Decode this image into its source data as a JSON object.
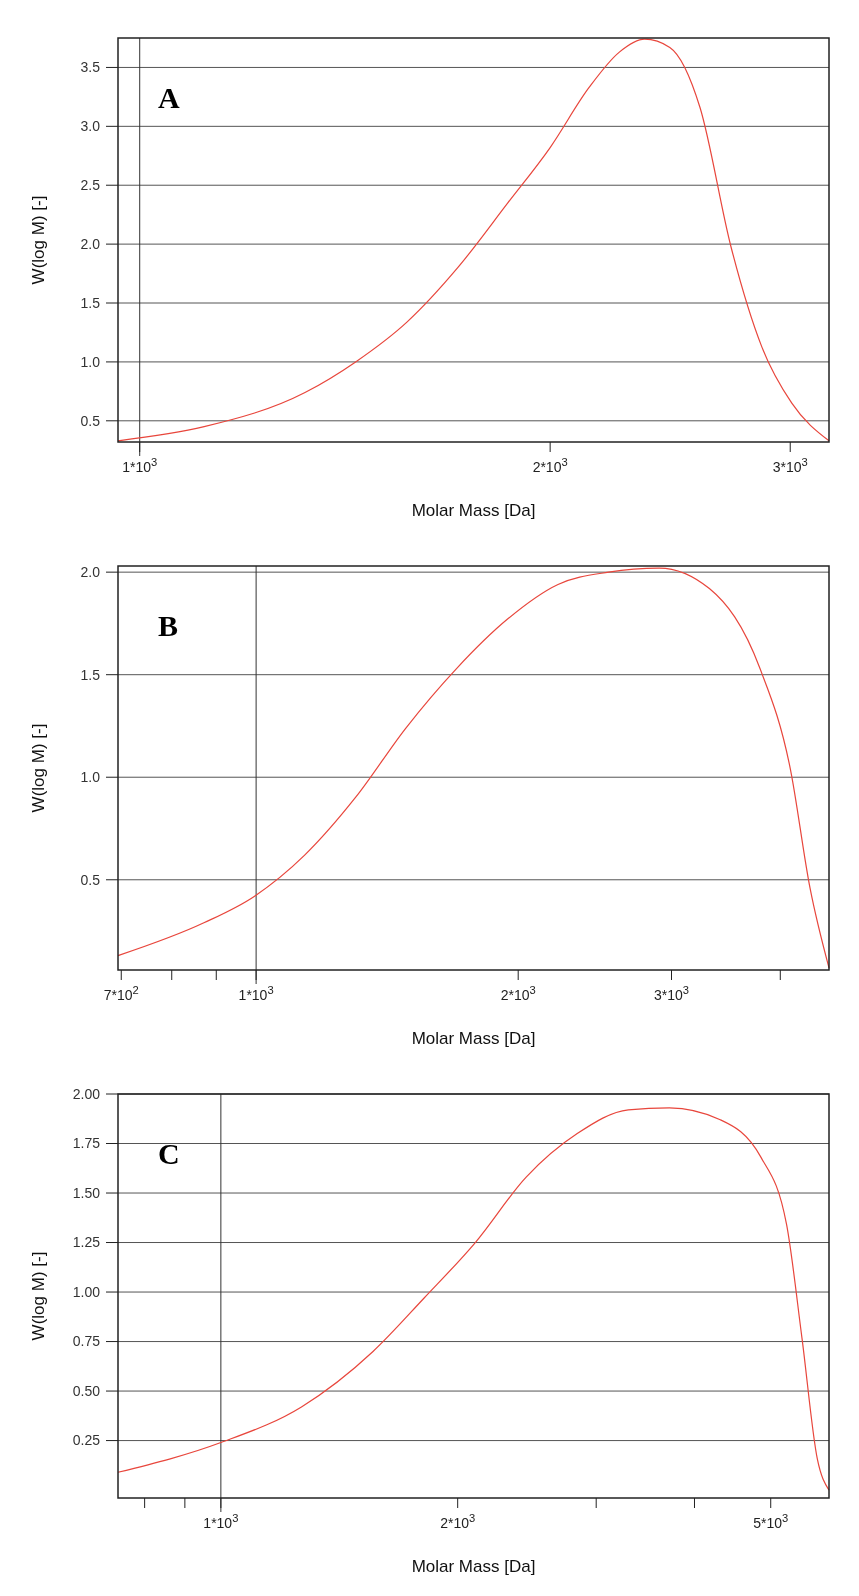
{
  "chart_data": [
    {
      "type": "line",
      "annotations": [
        "A"
      ],
      "xlabel": "Molar Mass [Da]",
      "ylabel": "W(log M) [-]",
      "log": "x",
      "grid": "y",
      "xlim": [
        964,
        3203
      ],
      "ylim": [
        0.32,
        3.75
      ],
      "xticks": [
        {
          "value": 1000,
          "label": "1*10$^{3}$"
        },
        {
          "value": 2000,
          "label": "2*10$^{3}$"
        },
        {
          "value": 3000,
          "label": "3*10$^{3}$"
        }
      ],
      "yticks": [
        {
          "value": 0.5,
          "label": "0.5"
        },
        {
          "value": 1.0,
          "label": "1.0"
        },
        {
          "value": 1.5,
          "label": "1.5"
        },
        {
          "value": 2.0,
          "label": "2.0"
        },
        {
          "value": 2.5,
          "label": "2.5"
        },
        {
          "value": 3.0,
          "label": "3.0"
        },
        {
          "value": 3.5,
          "label": "3.5"
        }
      ],
      "ref_lines": [
        {
          "axis": "x",
          "value": 1000
        }
      ],
      "series": [
        {
          "color": "#e8463c",
          "x": [
            964,
            1115,
            1322,
            1440,
            1571,
            1711,
            1862,
            2000,
            2136,
            2248,
            2346,
            2448,
            2576,
            2714,
            2859,
            3008,
            3203
          ],
          "values": [
            0.33,
            0.45,
            0.74,
            1.0,
            1.34,
            1.8,
            2.35,
            2.82,
            3.33,
            3.63,
            3.74,
            3.67,
            3.16,
            1.98,
            1.13,
            0.65,
            0.33
          ]
        }
      ]
    },
    {
      "type": "line",
      "annotations": [
        "B"
      ],
      "xlabel": "Molar Mass [Da]",
      "ylabel": "W(log M) [-]",
      "log": "x",
      "grid": "y",
      "xlim": [
        694,
        4550
      ],
      "ylim": [
        0.06,
        2.03
      ],
      "xticks": [
        {
          "value": 700,
          "label": "7*10$^{2}$"
        },
        {
          "value": 800,
          "label": null
        },
        {
          "value": 900,
          "label": null
        },
        {
          "value": 1000,
          "label": "1*10$^{3}$"
        },
        {
          "value": 2000,
          "label": "2*10$^{3}$"
        },
        {
          "value": 3000,
          "label": "3*10$^{3}$"
        },
        {
          "value": 4000,
          "label": null
        }
      ],
      "yticks": [
        {
          "value": 0.5,
          "label": "0.5"
        },
        {
          "value": 1.0,
          "label": "1.0"
        },
        {
          "value": 1.5,
          "label": "1.5"
        },
        {
          "value": 2.0,
          "label": "2.0"
        }
      ],
      "ref_lines": [
        {
          "axis": "x",
          "value": 1000
        }
      ],
      "series": [
        {
          "color": "#e8463c",
          "x": [
            694,
            871,
            996,
            1137,
            1300,
            1486,
            1699,
            1943,
            2222,
            2540,
            2904,
            3316,
            3791,
            4108,
            4327,
            4550
          ],
          "values": [
            0.13,
            0.29,
            0.42,
            0.62,
            0.9,
            1.24,
            1.53,
            1.77,
            1.94,
            2.0,
            2.02,
            1.92,
            1.53,
            1.04,
            0.46,
            0.07
          ]
        }
      ]
    },
    {
      "type": "line",
      "annotations": [
        "C"
      ],
      "xlabel": "Molar Mass [Da]",
      "ylabel": "W(log M) [-]",
      "log": "x",
      "grid": "y",
      "xlim": [
        740,
        5930
      ],
      "ylim": [
        -0.04,
        2.0
      ],
      "xticks": [
        {
          "value": 800,
          "label": null
        },
        {
          "value": 900,
          "label": null
        },
        {
          "value": 1000,
          "label": "1*10$^{3}$"
        },
        {
          "value": 2000,
          "label": "2*10$^{3}$"
        },
        {
          "value": 3000,
          "label": null
        },
        {
          "value": 4000,
          "label": null
        },
        {
          "value": 5000,
          "label": "5*10$^{3}$"
        }
      ],
      "yticks": [
        {
          "value": 0.25,
          "label": "0.25"
        },
        {
          "value": 0.5,
          "label": "0.50"
        },
        {
          "value": 0.75,
          "label": "0.75"
        },
        {
          "value": 1.0,
          "label": "1.00"
        },
        {
          "value": 1.25,
          "label": "1.25"
        },
        {
          "value": 1.5,
          "label": "1.50"
        },
        {
          "value": 1.75,
          "label": "1.75"
        },
        {
          "value": 2.0,
          "label": "2.00"
        }
      ],
      "ref_lines": [
        {
          "axis": "x",
          "value": 1000
        }
      ],
      "series": [
        {
          "color": "#e8463c",
          "x": [
            740,
            1000,
            1266,
            1561,
            1813,
            2106,
            2444,
            2838,
            3296,
            3716,
            4313,
            4860,
            5238,
            5478,
            5729,
            5930
          ],
          "values": [
            0.09,
            0.24,
            0.42,
            0.7,
            0.97,
            1.25,
            1.58,
            1.8,
            1.92,
            1.93,
            1.87,
            1.68,
            1.34,
            0.77,
            0.16,
            0.0
          ]
        }
      ]
    }
  ]
}
